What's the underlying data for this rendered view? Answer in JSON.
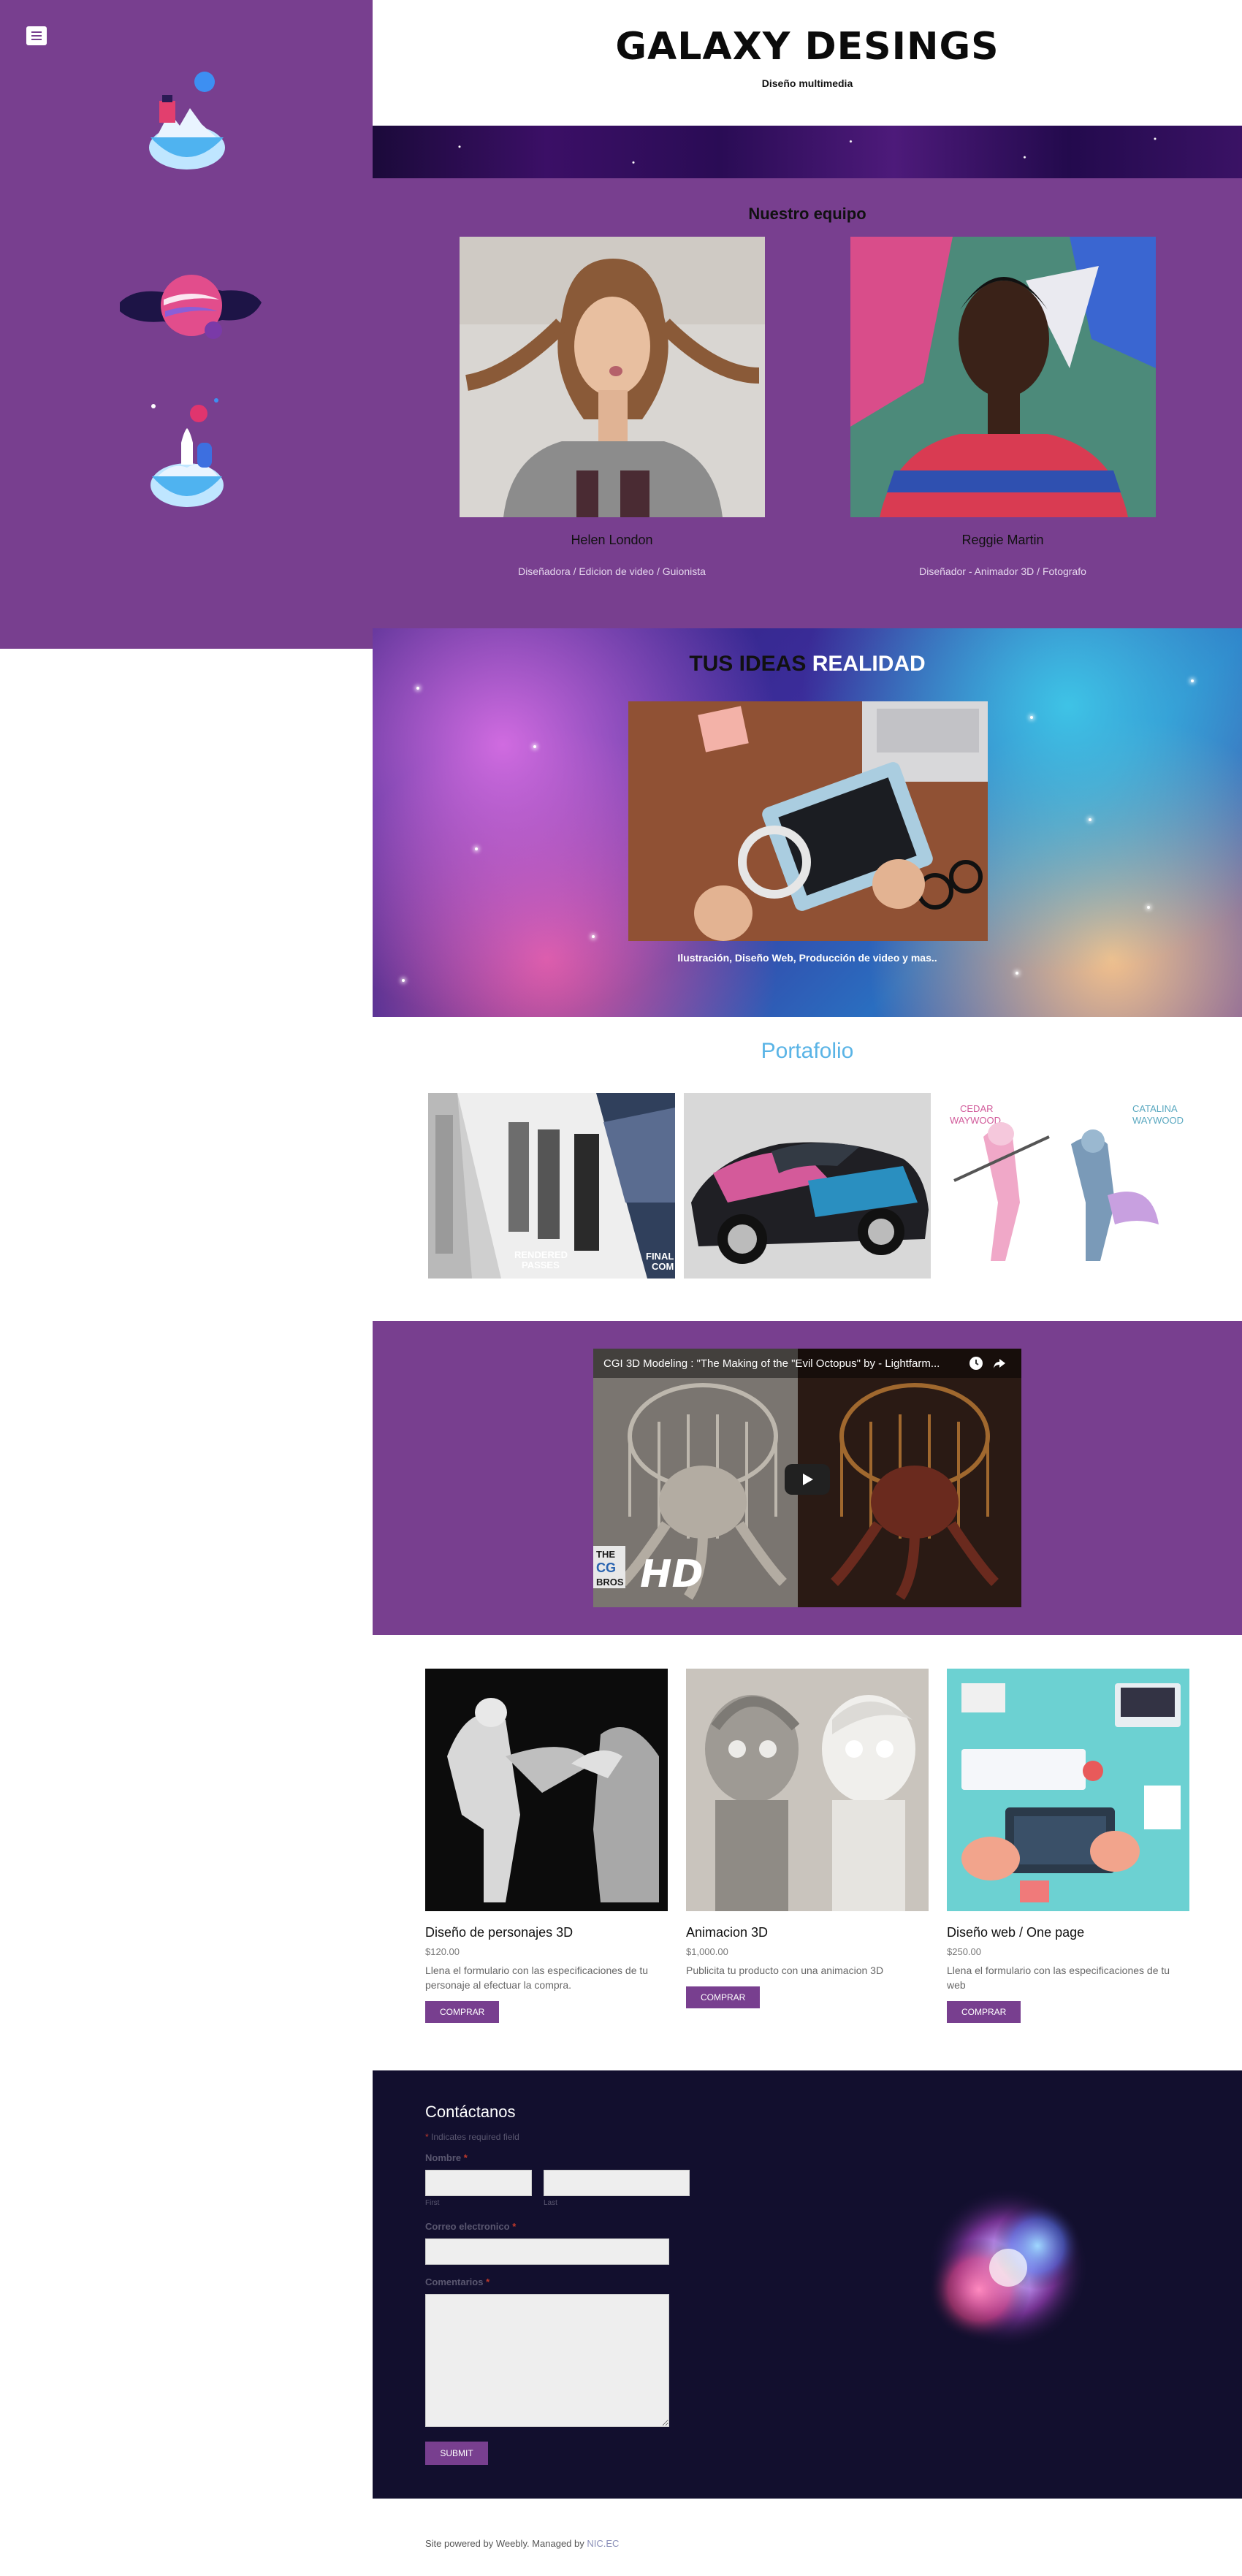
{
  "site": {
    "title": "GALAXY DESINGS",
    "subtitle": "Diseño multimedia"
  },
  "sidebar": {
    "menu_icon": "hamburger-icon",
    "illustrations": [
      "floating-island-icon",
      "planet-icon",
      "rocket-island-icon"
    ]
  },
  "team": {
    "title": "Nuestro equipo",
    "members": [
      {
        "name": "Helen London",
        "role": "Diseñadora / Edicion de video / Guionista"
      },
      {
        "name": "Reggie Martin",
        "role": "Diseñador - Animador 3D / Fotografo"
      }
    ]
  },
  "ideas": {
    "title_dark": "TUS IDEAS",
    "title_light": "REALIDAD",
    "caption": "Ilustración, Diseño Web, Producción de video y mas.."
  },
  "portfolio": {
    "title": "Portafolio",
    "items": [
      {
        "text_1": "RENDERED",
        "text_2": "PASSES",
        "text_3": "FINAL",
        "text_4": "COM"
      },
      {
        "alt": "car-render"
      },
      {
        "text_1": "CEDAR",
        "text_2": "WAYWOOD",
        "text_3": "CATALINA",
        "text_4": "WAYWOOD"
      }
    ]
  },
  "video": {
    "title": "CGI 3D Modeling : \"The Making of the \"Evil Octopus\" by - Lightfarm...",
    "badge": "HD",
    "brand_1": "THE",
    "brand_2": "CG",
    "brand_3": "BROS"
  },
  "products": [
    {
      "name": "Diseño de personajes 3D",
      "price": "$120.00",
      "desc": "Llena el formulario con las especificaciones de tu personaje al efectuar la compra.",
      "button": "COMPRAR"
    },
    {
      "name": "Animacion 3D",
      "price": "$1,000.00",
      "desc": "Publicita tu producto con una animacion 3D",
      "button": "COMPRAR"
    },
    {
      "name": "Diseño web / One page",
      "price": "$250.00",
      "desc": "Llena el formulario con las especificaciones de tu web",
      "button": "COMPRAR"
    }
  ],
  "contact": {
    "title": "Contáctanos",
    "required_note": "Indicates required field",
    "name_label": "Nombre",
    "first_label": "First",
    "last_label": "Last",
    "email_label": "Correo electronico",
    "comments_label": "Comentarios",
    "submit": "SUBMIT"
  },
  "footer": {
    "text": "Site powered by Weebly. Managed by",
    "link": "NIC.EC"
  },
  "colors": {
    "purple": "#783f8f",
    "navy": "#120f2e",
    "portfolio_blue": "#5ab4e6"
  }
}
